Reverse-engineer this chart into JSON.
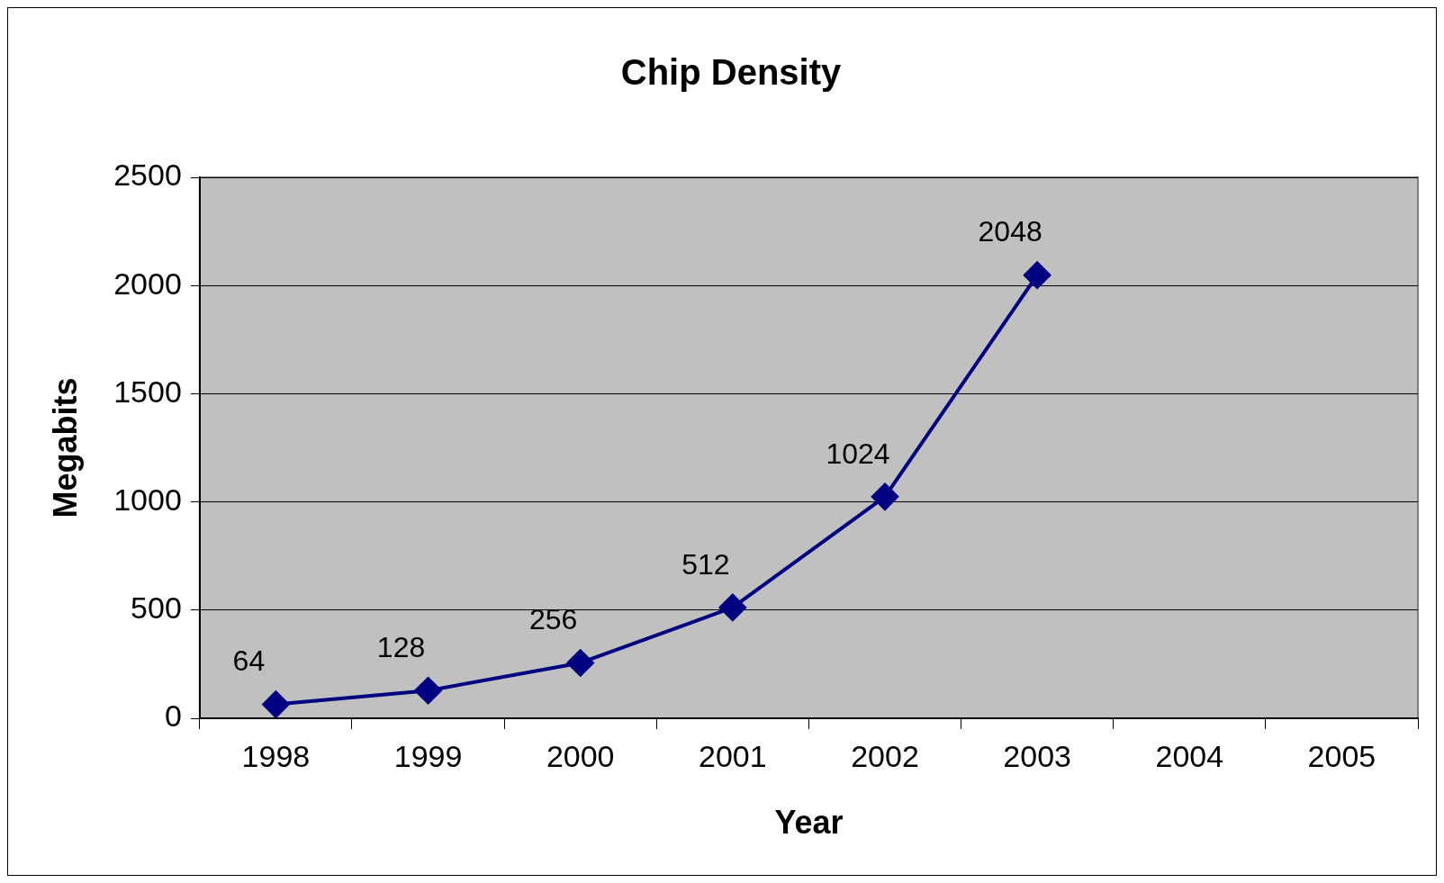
{
  "chart_data": {
    "type": "line",
    "title": "Chip Density",
    "xlabel": "Year",
    "ylabel": "Megabits",
    "categories": [
      "1998",
      "1999",
      "2000",
      "2001",
      "2002",
      "2003",
      "2004",
      "2005"
    ],
    "series": [
      {
        "color": "#000080",
        "values": [
          64,
          128,
          256,
          512,
          1024,
          2048,
          null,
          null
        ]
      }
    ],
    "ylim": [
      0,
      2500
    ],
    "yticks": [
      0,
      500,
      1000,
      1500,
      2000,
      2500
    ],
    "grid": "y",
    "legend": false,
    "marker": "diamond",
    "line_style": "solid",
    "data_labels": true
  }
}
